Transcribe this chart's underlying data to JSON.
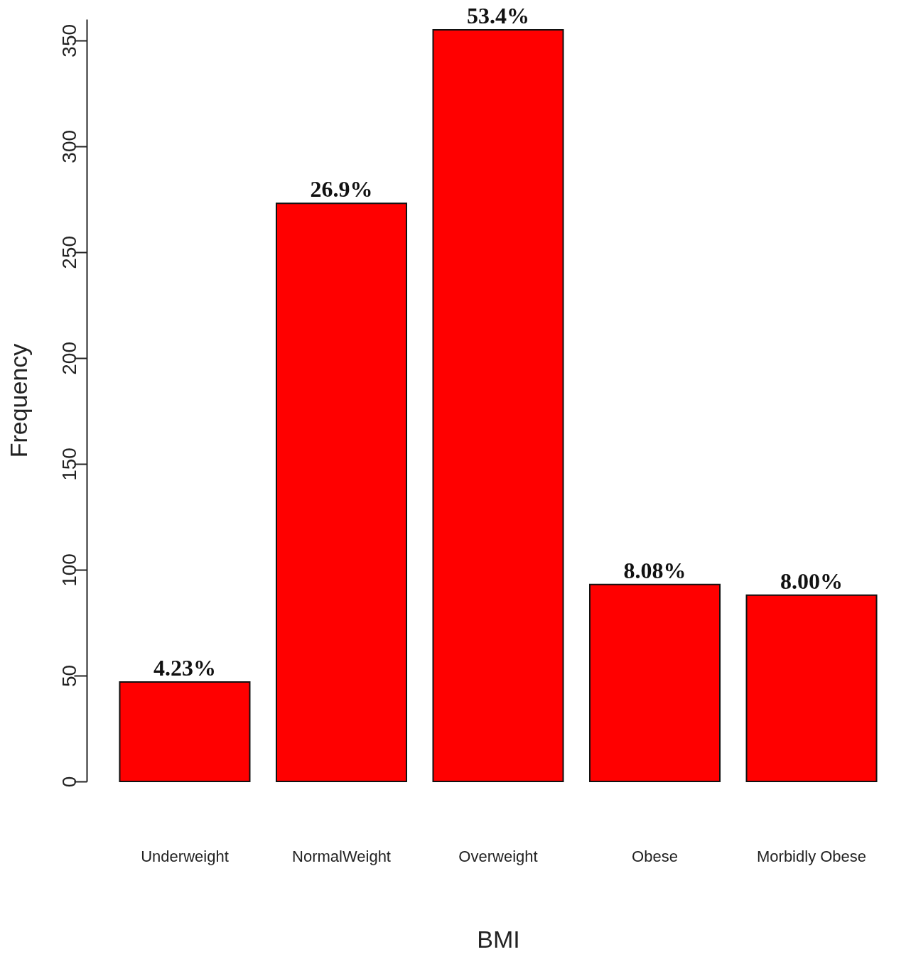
{
  "chart_data": {
    "type": "bar",
    "xlabel": "BMI",
    "ylabel": "Frequency",
    "categories": [
      "Underweight",
      "NormalWeight",
      "Overweight",
      "Obese",
      "Morbidly Obese"
    ],
    "values": [
      47,
      273,
      355,
      93,
      88
    ],
    "annotations": [
      {
        "text": "4.23%",
        "x": "Underweight",
        "y": 47
      },
      {
        "text": "26.9%",
        "x": "NormalWeight",
        "y": 273
      },
      {
        "text": "53.4%",
        "x": "Overweight",
        "y": 355
      },
      {
        "text": "8.08%",
        "x": "Obese",
        "y": 93
      },
      {
        "text": "8.00%",
        "x": "Morbidly Obese",
        "y": 88
      }
    ],
    "color": "#ff0000",
    "ylim": [
      0,
      360
    ],
    "yticks": [
      0,
      50,
      100,
      150,
      200,
      250,
      300,
      350
    ],
    "grid": false
  }
}
